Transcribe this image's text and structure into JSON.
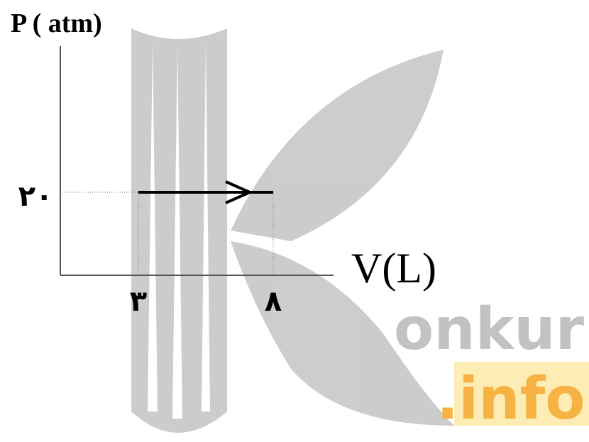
{
  "diagram": {
    "y_axis_label": "P ( atm)",
    "x_axis_label": "V(L)",
    "y_tick_label": "۲۰",
    "x_tick_labels": [
      "۳",
      "۸"
    ],
    "watermark": {
      "word": "onkur",
      "suffix": ".info"
    }
  }
}
